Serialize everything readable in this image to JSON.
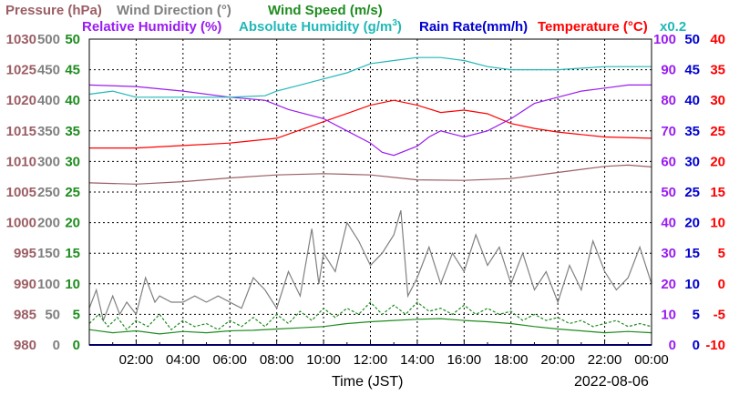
{
  "header": {
    "pressure": "Pressure (hPa)",
    "wind_direction": "Wind Direction (°)",
    "wind_speed": "Wind Speed (m/s)",
    "relative_humidity": "Relative Humidity (%)",
    "absolute_humidity": "Absolute Humidity (g/m",
    "absolute_humidity_sup": "3",
    "absolute_humidity_close": ")",
    "rain_rate": "Rain Rate(mm/h)",
    "temperature": "Temperature (°C)",
    "abs_multiplier": "x0.2"
  },
  "colors": {
    "pressure": "#9b5e64",
    "wind_direction": "#808080",
    "wind_speed": "#1e8c1e",
    "relative_humidity": "#9a1cf0",
    "absolute_humidity": "#22b8b8",
    "rain_rate": "#0000d0",
    "temperature": "#ff0000"
  },
  "footer": {
    "xlabel": "Time (JST)",
    "date": "2022-08-06"
  },
  "chart_data": {
    "type": "line",
    "x_ticks": [
      "02:00",
      "04:00",
      "06:00",
      "08:00",
      "10:00",
      "12:00",
      "14:00",
      "16:00",
      "18:00",
      "20:00",
      "22:00",
      "00:00"
    ],
    "x_range_hours": [
      0,
      24
    ],
    "grid": true,
    "axes": {
      "pressure": {
        "ticks": [
          980,
          985,
          990,
          995,
          1000,
          1005,
          1010,
          1015,
          1020,
          1025,
          1030
        ]
      },
      "wind_direction": {
        "ticks": [
          0,
          50,
          100,
          150,
          200,
          250,
          300,
          350,
          400,
          450,
          500
        ]
      },
      "wind_speed": {
        "ticks": [
          0,
          5,
          10,
          15,
          20,
          25,
          30,
          35,
          40,
          45,
          50
        ]
      },
      "humidity": {
        "ticks": [
          0,
          10,
          20,
          30,
          40,
          50,
          60,
          70,
          80,
          90,
          100
        ]
      },
      "rain_rate": {
        "ticks": [
          0,
          5,
          10,
          15,
          20,
          25,
          30,
          35,
          40,
          45,
          50
        ]
      },
      "temperature": {
        "ticks": [
          -10,
          -5,
          0,
          5,
          10,
          15,
          20,
          25,
          30,
          35,
          40
        ]
      }
    },
    "series": [
      {
        "name": "Pressure (hPa)",
        "axis": "pressure",
        "color": "#9b5e64",
        "points": [
          [
            0,
            1006.5
          ],
          [
            2,
            1006.3
          ],
          [
            4,
            1006.7
          ],
          [
            6,
            1007.3
          ],
          [
            8,
            1007.8
          ],
          [
            10,
            1008.0
          ],
          [
            12,
            1007.8
          ],
          [
            14,
            1007.0
          ],
          [
            16,
            1006.9
          ],
          [
            18,
            1007.2
          ],
          [
            20,
            1008.2
          ],
          [
            22,
            1009.2
          ],
          [
            23,
            1009.4
          ],
          [
            24,
            1009.1
          ]
        ]
      },
      {
        "name": "Temperature (°C)",
        "axis": "temperature",
        "color": "#ff0000",
        "points": [
          [
            0,
            22.2
          ],
          [
            2,
            22.2
          ],
          [
            4,
            22.6
          ],
          [
            6,
            23.0
          ],
          [
            8,
            23.8
          ],
          [
            10,
            26.5
          ],
          [
            12,
            29.2
          ],
          [
            13,
            30.0
          ],
          [
            14,
            29.2
          ],
          [
            15,
            28.0
          ],
          [
            16,
            28.4
          ],
          [
            17,
            27.8
          ],
          [
            18,
            26.2
          ],
          [
            19,
            25.4
          ],
          [
            20,
            24.8
          ],
          [
            21,
            24.4
          ],
          [
            22,
            24.0
          ],
          [
            24,
            23.8
          ]
        ]
      },
      {
        "name": "Relative Humidity (%)",
        "axis": "humidity",
        "color": "#9a1cf0",
        "points": [
          [
            0,
            85
          ],
          [
            2,
            84.5
          ],
          [
            4,
            83
          ],
          [
            6,
            81
          ],
          [
            7.5,
            80
          ],
          [
            8.5,
            77
          ],
          [
            10,
            74
          ],
          [
            11,
            70
          ],
          [
            12,
            66
          ],
          [
            12.5,
            63
          ],
          [
            13,
            62
          ],
          [
            14,
            65
          ],
          [
            14.5,
            68
          ],
          [
            15,
            70
          ],
          [
            15.5,
            69
          ],
          [
            16,
            68
          ],
          [
            17,
            70
          ],
          [
            18,
            74
          ],
          [
            19,
            79
          ],
          [
            20,
            81
          ],
          [
            21,
            83
          ],
          [
            22,
            84
          ],
          [
            23,
            85
          ],
          [
            24,
            85
          ]
        ]
      },
      {
        "name": "Absolute Humidity (g/m3) x0.2",
        "axis": "humidity",
        "color": "#22b8b8",
        "points": [
          [
            0,
            82
          ],
          [
            1,
            83
          ],
          [
            2,
            81
          ],
          [
            4,
            81
          ],
          [
            6,
            81
          ],
          [
            7.5,
            81.5
          ],
          [
            8,
            83
          ],
          [
            9,
            85
          ],
          [
            10,
            87
          ],
          [
            11,
            89
          ],
          [
            12,
            92
          ],
          [
            13,
            93
          ],
          [
            14,
            94
          ],
          [
            15,
            94
          ],
          [
            16,
            93
          ],
          [
            17,
            91
          ],
          [
            18,
            90
          ],
          [
            19,
            90
          ],
          [
            20,
            90
          ],
          [
            22,
            91
          ],
          [
            24,
            91
          ]
        ]
      },
      {
        "name": "Wind Direction (°)",
        "axis": "wind_direction",
        "color": "#808080",
        "points": [
          [
            0,
            60
          ],
          [
            0.3,
            90
          ],
          [
            0.6,
            40
          ],
          [
            1,
            80
          ],
          [
            1.3,
            50
          ],
          [
            1.6,
            70
          ],
          [
            2,
            50
          ],
          [
            2.4,
            110
          ],
          [
            2.8,
            70
          ],
          [
            3,
            80
          ],
          [
            3.5,
            70
          ],
          [
            4,
            70
          ],
          [
            4.5,
            80
          ],
          [
            5,
            70
          ],
          [
            5.5,
            80
          ],
          [
            6,
            70
          ],
          [
            6.5,
            60
          ],
          [
            7,
            110
          ],
          [
            7.5,
            90
          ],
          [
            8,
            60
          ],
          [
            8.5,
            120
          ],
          [
            9,
            80
          ],
          [
            9.5,
            190
          ],
          [
            9.8,
            100
          ],
          [
            10,
            150
          ],
          [
            10.5,
            120
          ],
          [
            11,
            200
          ],
          [
            11.5,
            170
          ],
          [
            12,
            130
          ],
          [
            12.5,
            150
          ],
          [
            13,
            180
          ],
          [
            13.3,
            220
          ],
          [
            13.6,
            80
          ],
          [
            14,
            110
          ],
          [
            14.5,
            160
          ],
          [
            15,
            100
          ],
          [
            15.5,
            150
          ],
          [
            16,
            120
          ],
          [
            16.5,
            180
          ],
          [
            17,
            130
          ],
          [
            17.5,
            160
          ],
          [
            18,
            100
          ],
          [
            18.5,
            150
          ],
          [
            19,
            90
          ],
          [
            19.5,
            120
          ],
          [
            20,
            70
          ],
          [
            20.5,
            130
          ],
          [
            21,
            90
          ],
          [
            21.5,
            170
          ],
          [
            22,
            120
          ],
          [
            22.5,
            90
          ],
          [
            23,
            110
          ],
          [
            23.5,
            160
          ],
          [
            24,
            100
          ]
        ]
      },
      {
        "name": "Wind Speed (m/s)",
        "axis": "wind_speed",
        "color": "#1e8c1e",
        "points": [
          [
            0,
            2.5
          ],
          [
            1,
            2.0
          ],
          [
            2,
            2.3
          ],
          [
            3,
            1.8
          ],
          [
            4,
            2.2
          ],
          [
            5,
            2.0
          ],
          [
            6,
            2.3
          ],
          [
            7,
            2.4
          ],
          [
            8,
            2.6
          ],
          [
            9,
            2.8
          ],
          [
            10,
            3.0
          ],
          [
            11,
            3.5
          ],
          [
            12,
            3.8
          ],
          [
            13,
            4.0
          ],
          [
            14,
            4.2
          ],
          [
            15,
            4.3
          ],
          [
            16,
            4.0
          ],
          [
            17,
            3.8
          ],
          [
            18,
            3.5
          ],
          [
            19,
            3.0
          ],
          [
            20,
            2.6
          ],
          [
            21,
            2.3
          ],
          [
            22,
            2.0
          ],
          [
            23,
            2.2
          ],
          [
            24,
            2.0
          ]
        ]
      },
      {
        "name": "Wind Speed gust (m/s)",
        "axis": "wind_speed",
        "color": "#1e8c1e",
        "points": [
          [
            0,
            3.5
          ],
          [
            0.4,
            5
          ],
          [
            0.8,
            3
          ],
          [
            1.2,
            4.5
          ],
          [
            1.6,
            2.5
          ],
          [
            2,
            4
          ],
          [
            2.5,
            3
          ],
          [
            3,
            5
          ],
          [
            3.5,
            2.5
          ],
          [
            4,
            4
          ],
          [
            4.5,
            3
          ],
          [
            5,
            3.5
          ],
          [
            5.5,
            2.5
          ],
          [
            6,
            4
          ],
          [
            6.5,
            3
          ],
          [
            7,
            4.5
          ],
          [
            7.5,
            3
          ],
          [
            8,
            5
          ],
          [
            8.5,
            3.5
          ],
          [
            9,
            5.5
          ],
          [
            9.5,
            4
          ],
          [
            10,
            6
          ],
          [
            10.5,
            4.5
          ],
          [
            11,
            6
          ],
          [
            11.5,
            5
          ],
          [
            12,
            7
          ],
          [
            12.5,
            5
          ],
          [
            13,
            6.5
          ],
          [
            13.5,
            5
          ],
          [
            14,
            7
          ],
          [
            14.5,
            5.5
          ],
          [
            15,
            6
          ],
          [
            15.5,
            5
          ],
          [
            16,
            6.5
          ],
          [
            16.5,
            5
          ],
          [
            17,
            6
          ],
          [
            17.5,
            5
          ],
          [
            18,
            5.5
          ],
          [
            18.5,
            4
          ],
          [
            19,
            5
          ],
          [
            19.5,
            4
          ],
          [
            20,
            4.5
          ],
          [
            20.5,
            3.5
          ],
          [
            21,
            4
          ],
          [
            21.5,
            3
          ],
          [
            22,
            3.5
          ],
          [
            22.5,
            4
          ],
          [
            23,
            3
          ],
          [
            23.5,
            3.5
          ],
          [
            24,
            3
          ]
        ]
      },
      {
        "name": "Rain Rate(mm/h)",
        "axis": "rain_rate",
        "color": "#0000d0",
        "points": [
          [
            0,
            0
          ],
          [
            24,
            0
          ]
        ]
      }
    ]
  }
}
